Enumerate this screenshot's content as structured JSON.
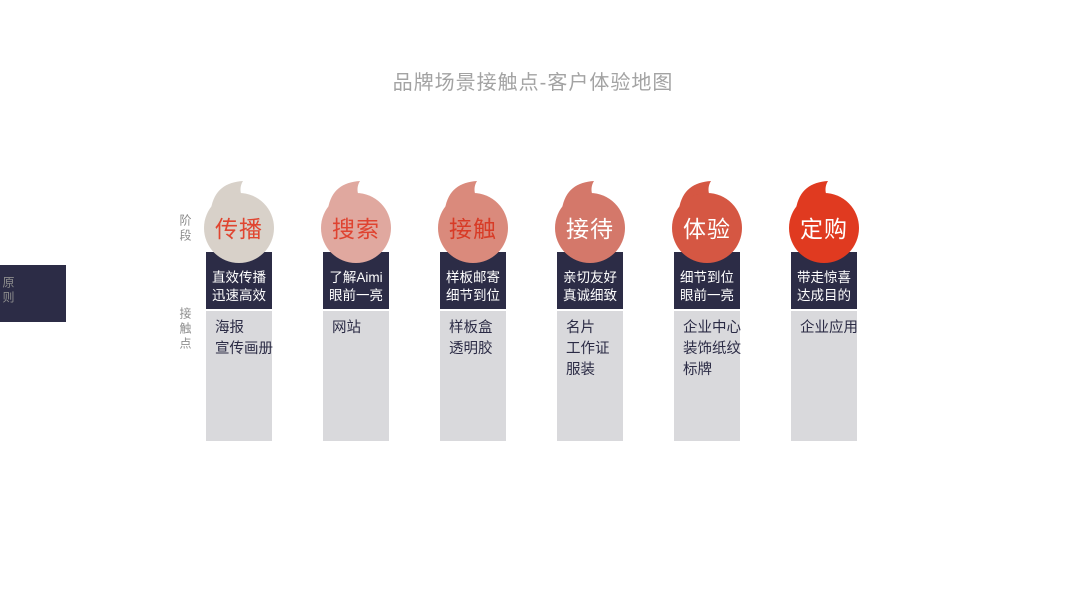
{
  "title": "品牌场景接触点-客户体验地图",
  "row_labels": [
    {
      "label": "阶段"
    },
    {
      "label": "原则"
    },
    {
      "label": "接触点"
    }
  ],
  "columns": [
    {
      "stage": "传播",
      "bubble_color": "#d8d1c9",
      "stage_color": "#e04530",
      "principle": [
        "直效传播",
        "迅速高效"
      ],
      "touchpoints": [
        "海报",
        "宣传画册"
      ]
    },
    {
      "stage": "搜索",
      "bubble_color": "#e0a89f",
      "stage_color": "#df4330",
      "principle": [
        "了解Aimi",
        "眼前一亮"
      ],
      "touchpoints": [
        "网站"
      ]
    },
    {
      "stage": "接触",
      "bubble_color": "#da8a7c",
      "stage_color": "#d83b26",
      "principle": [
        "样板邮寄",
        "细节到位"
      ],
      "touchpoints": [
        "样板盒",
        "透明胶"
      ]
    },
    {
      "stage": "接待",
      "bubble_color": "#d4786a",
      "stage_color": "#ffffff",
      "principle": [
        "亲切友好",
        "真诚细致"
      ],
      "touchpoints": [
        "名片",
        "工作证",
        "服装"
      ]
    },
    {
      "stage": "体验",
      "bubble_color": "#d55743",
      "stage_color": "#ffffff",
      "principle": [
        "细节到位",
        "眼前一亮"
      ],
      "touchpoints": [
        "企业中心",
        "装饰纸纹",
        "标牌"
      ]
    },
    {
      "stage": "定购",
      "bubble_color": "#e03a20",
      "stage_color": "#ffffff",
      "principle": [
        "带走惊喜",
        "达成目的"
      ],
      "touchpoints": [
        "企业应用"
      ]
    }
  ],
  "colors": {
    "navy": "#2c2c46",
    "column_gray": "#d9d9dc",
    "title_gray": "#a3a3a3",
    "row_label_gray": "#8d8d8d"
  }
}
